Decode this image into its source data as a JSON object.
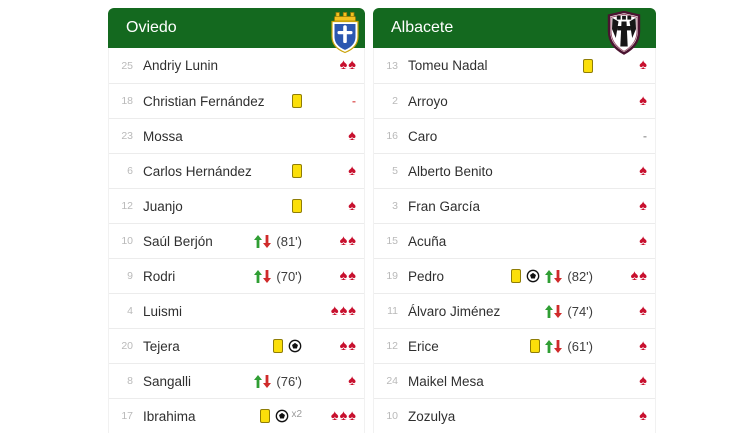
{
  "colors": {
    "header_green": "#14691f",
    "spade_red": "#c8102e",
    "card_yellow": "#fbdf0a",
    "card_border": "#8f7d06",
    "sub_on_green": "#2f9e33",
    "sub_off_red": "#d02a2a",
    "number_gray": "#b9b9b9",
    "name_dark": "#2f2f2f",
    "divider_gray": "#ececec"
  },
  "icons": {
    "spade": "♠",
    "dash": "-",
    "yellow_card": "yellow-card-icon",
    "goal": "soccer-ball-icon",
    "sub_on": "green-up-arrow-icon",
    "sub_off": "red-down-arrow-icon"
  },
  "teams": [
    {
      "name": "Oviedo",
      "crest": "oviedo-crest",
      "players": [
        {
          "number": "25",
          "name": "Andriy Lunin",
          "card": false,
          "goals": 0,
          "sub_minute": "",
          "spades": 2,
          "dash": ""
        },
        {
          "number": "18",
          "name": "Christian Fernández",
          "card": true,
          "goals": 0,
          "sub_minute": "",
          "spades": 0,
          "dash": "red"
        },
        {
          "number": "23",
          "name": "Mossa",
          "card": false,
          "goals": 0,
          "sub_minute": "",
          "spades": 1,
          "dash": ""
        },
        {
          "number": "6",
          "name": "Carlos Hernández",
          "card": true,
          "goals": 0,
          "sub_minute": "",
          "spades": 1,
          "dash": ""
        },
        {
          "number": "12",
          "name": "Juanjo",
          "card": true,
          "goals": 0,
          "sub_minute": "",
          "spades": 1,
          "dash": ""
        },
        {
          "number": "10",
          "name": "Saúl Berjón",
          "card": false,
          "goals": 0,
          "sub_minute": "81'",
          "spades": 2,
          "dash": ""
        },
        {
          "number": "9",
          "name": "Rodri",
          "card": false,
          "goals": 0,
          "sub_minute": "70'",
          "spades": 2,
          "dash": ""
        },
        {
          "number": "4",
          "name": "Luismi",
          "card": false,
          "goals": 0,
          "sub_minute": "",
          "spades": 3,
          "dash": ""
        },
        {
          "number": "20",
          "name": "Tejera",
          "card": true,
          "goals": 1,
          "sub_minute": "",
          "spades": 2,
          "dash": ""
        },
        {
          "number": "8",
          "name": "Sangalli",
          "card": false,
          "goals": 0,
          "sub_minute": "76'",
          "spades": 1,
          "dash": ""
        },
        {
          "number": "17",
          "name": "Ibrahima",
          "card": true,
          "goals": 2,
          "sub_minute": "",
          "spades": 3,
          "dash": ""
        }
      ]
    },
    {
      "name": "Albacete",
      "crest": "albacete-crest",
      "players": [
        {
          "number": "13",
          "name": "Tomeu Nadal",
          "card": true,
          "goals": 0,
          "sub_minute": "",
          "spades": 1,
          "dash": ""
        },
        {
          "number": "2",
          "name": "Arroyo",
          "card": false,
          "goals": 0,
          "sub_minute": "",
          "spades": 1,
          "dash": ""
        },
        {
          "number": "16",
          "name": "Caro",
          "card": false,
          "goals": 0,
          "sub_minute": "",
          "spades": 0,
          "dash": "gray"
        },
        {
          "number": "5",
          "name": "Alberto Benito",
          "card": false,
          "goals": 0,
          "sub_minute": "",
          "spades": 1,
          "dash": ""
        },
        {
          "number": "3",
          "name": "Fran García",
          "card": false,
          "goals": 0,
          "sub_minute": "",
          "spades": 1,
          "dash": ""
        },
        {
          "number": "15",
          "name": "Acuña",
          "card": false,
          "goals": 0,
          "sub_minute": "",
          "spades": 1,
          "dash": ""
        },
        {
          "number": "19",
          "name": "Pedro",
          "card": true,
          "goals": 1,
          "sub_minute": "82'",
          "spades": 2,
          "dash": ""
        },
        {
          "number": "11",
          "name": "Álvaro Jiménez",
          "card": false,
          "goals": 0,
          "sub_minute": "74'",
          "spades": 1,
          "dash": ""
        },
        {
          "number": "12",
          "name": "Erice",
          "card": true,
          "goals": 0,
          "sub_minute": "61'",
          "spades": 1,
          "dash": ""
        },
        {
          "number": "24",
          "name": "Maikel Mesa",
          "card": false,
          "goals": 0,
          "sub_minute": "",
          "spades": 1,
          "dash": ""
        },
        {
          "number": "10",
          "name": "Zozulya",
          "card": false,
          "goals": 0,
          "sub_minute": "",
          "spades": 1,
          "dash": ""
        }
      ]
    }
  ]
}
